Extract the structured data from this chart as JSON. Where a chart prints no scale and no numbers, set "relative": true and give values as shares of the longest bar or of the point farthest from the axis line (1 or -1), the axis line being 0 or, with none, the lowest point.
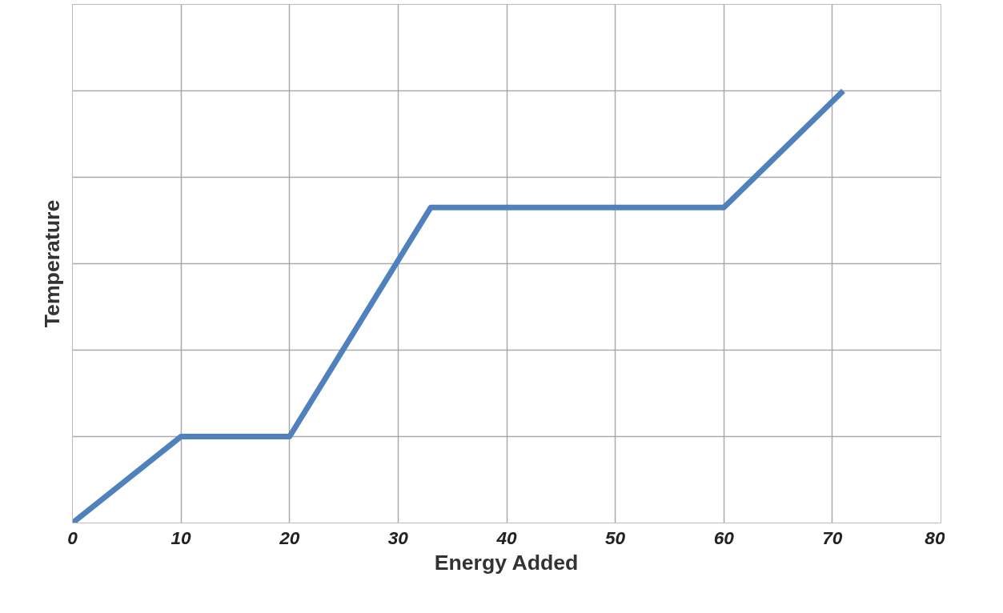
{
  "chart_data": {
    "type": "line",
    "xlabel": "Energy Added",
    "ylabel": "Temperature",
    "relative": true,
    "x": [
      0,
      10,
      20,
      33,
      60,
      71
    ],
    "series": [
      {
        "color": "#4f81bd",
        "values": [
          0,
          0.2,
          0.2,
          0.73,
          0.73,
          1
        ]
      }
    ],
    "xlim": [
      0,
      80
    ],
    "xticks": [
      0,
      10,
      20,
      30,
      40,
      50,
      60,
      70,
      80
    ],
    "tick_labels": "x",
    "grid": true,
    "line_style": "solid"
  }
}
